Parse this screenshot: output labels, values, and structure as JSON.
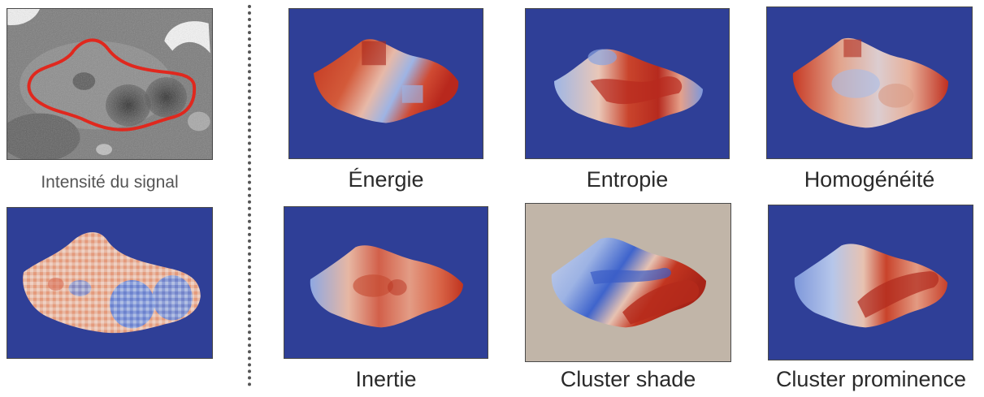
{
  "left_column": {
    "ct_caption": "Intensité du signal",
    "contour_color": "#e0281e"
  },
  "maps": [
    {
      "id": "energie",
      "label": "Énergie"
    },
    {
      "id": "entropie",
      "label": "Entropie"
    },
    {
      "id": "homogeneite",
      "label": "Homogénéité"
    },
    {
      "id": "inertie",
      "label": "Inertie"
    },
    {
      "id": "cluster-shade",
      "label": "Cluster shade"
    },
    {
      "id": "cluster-prominence",
      "label": "Cluster prominence"
    }
  ],
  "colors": {
    "map_background": "#2f3f97",
    "shade_background": "#c1b5a8",
    "high": "#b2261c",
    "mid_warm": "#e6a085",
    "neutral": "#e5d3cb",
    "low": "#4c6bd0"
  }
}
